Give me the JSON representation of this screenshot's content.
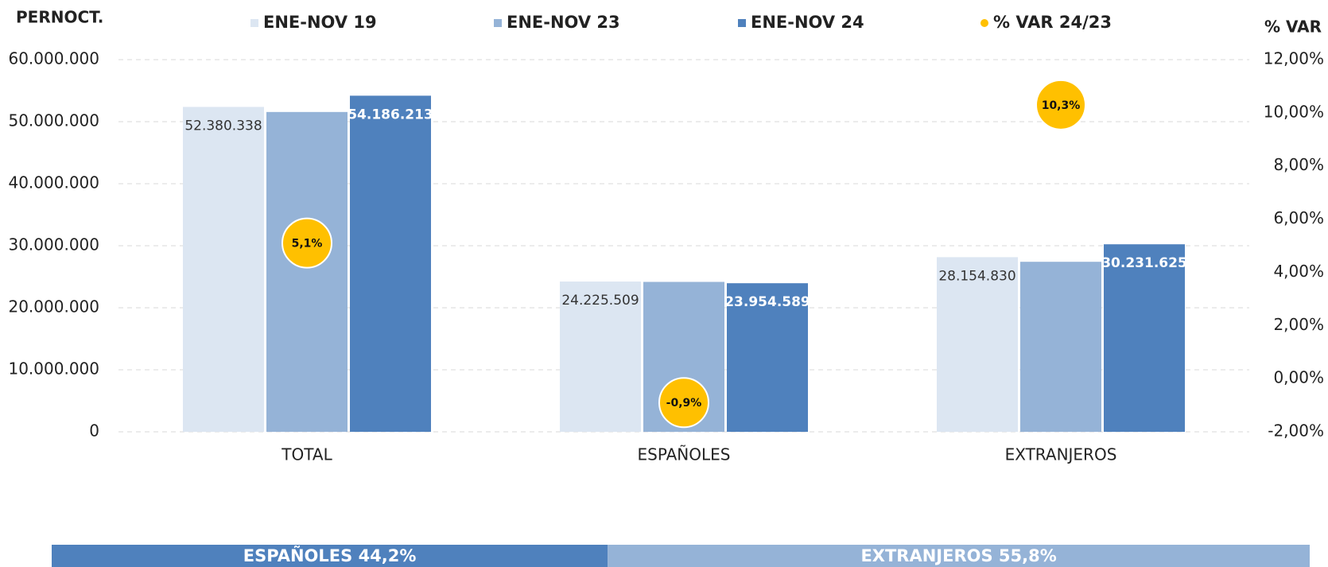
{
  "chart_data": {
    "type": "bar",
    "y_label": "PERNOCT.",
    "y2_label": "% VAR",
    "categories": [
      "TOTAL",
      "ESPAÑOLES",
      "EXTRANJEROS"
    ],
    "series": [
      {
        "name": "ENE-NOV 19",
        "color": "#dce6f2",
        "values": [
          52380338,
          24225509,
          28154830
        ],
        "value_labels": [
          "52.380.338",
          "24.225.509",
          "28.154.830"
        ]
      },
      {
        "name": "ENE-NOV 23",
        "color": "#95b3d7",
        "values": [
          51560000,
          24170000,
          27410000
        ]
      },
      {
        "name": "ENE-NOV 24",
        "color": "#4f81bd",
        "values": [
          54186213,
          23954589,
          30231625
        ],
        "value_labels": [
          "54.186.213",
          "23.954.589",
          "30.231.625"
        ]
      },
      {
        "name": "% VAR 24/23",
        "color": "#ffc000",
        "type": "scatter",
        "axis": "y2",
        "values": [
          5.1,
          -0.9,
          10.3
        ],
        "value_labels": [
          "5,1%",
          "-0,9%",
          "10,3%"
        ]
      }
    ],
    "ylim": [
      0,
      60000000
    ],
    "yticks": [
      0,
      {
        "value": 10000000,
        "label": "10.000.000"
      },
      {
        "value": 20000000,
        "label": "20.000.000"
      },
      {
        "value": 30000000,
        "label": "30.000.000"
      },
      {
        "value": 40000000,
        "label": "40.000.000"
      },
      {
        "value": 50000000,
        "label": "50.000.000"
      },
      {
        "value": 60000000,
        "label": "60.000.000"
      }
    ],
    "y2lim": [
      -2,
      12
    ],
    "y2ticks": [
      {
        "value": -2,
        "label": "-2,00%"
      },
      {
        "value": 0,
        "label": "0,00%"
      },
      {
        "value": 2,
        "label": "2,00%"
      },
      {
        "value": 4,
        "label": "4,00%"
      },
      {
        "value": 6,
        "label": "6,00%"
      },
      {
        "value": 8,
        "label": "8,00%"
      },
      {
        "value": 10,
        "label": "10,00%"
      },
      {
        "value": 12,
        "label": "12,00%"
      }
    ],
    "grid": true,
    "legend": "top"
  },
  "share_bar": {
    "segments": [
      {
        "label": "ESPAÑOLES 44,2%",
        "value": 44.2,
        "color": "#4f81bd"
      },
      {
        "label": "EXTRANJEROS 55,8%",
        "value": 55.8,
        "color": "#95b3d7"
      }
    ]
  }
}
